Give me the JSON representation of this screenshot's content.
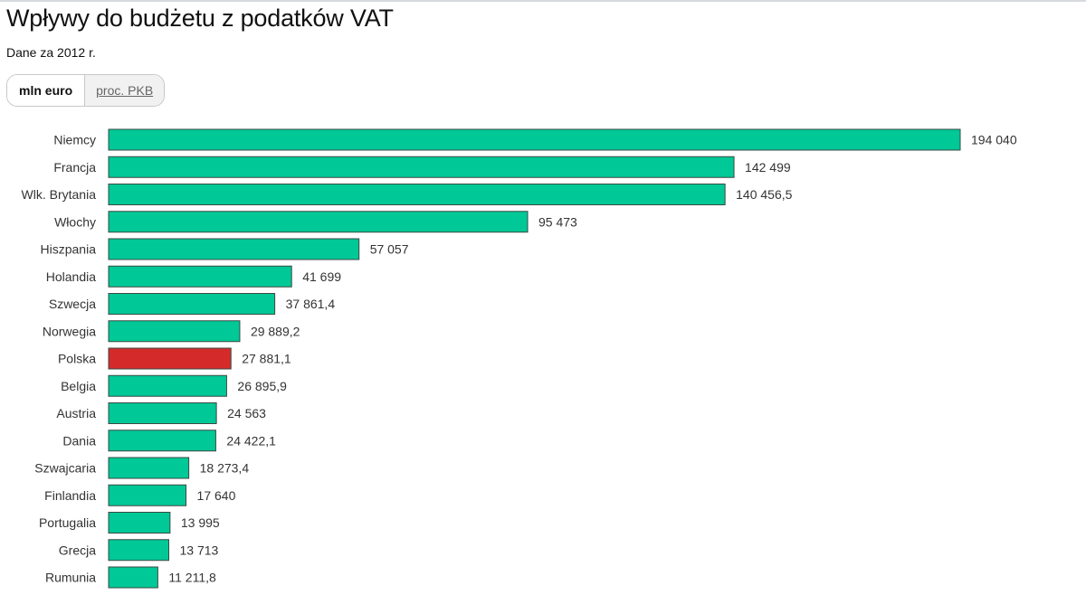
{
  "header": {
    "title": "Wpływy do budżetu z podatków VAT",
    "subtitle": "Dane za 2012 r."
  },
  "toggle": {
    "active_label": "mln euro",
    "inactive_label": "proc. PKB"
  },
  "colors": {
    "bar": "#00c896",
    "highlight": "#d42a2a"
  },
  "chart_data": {
    "type": "bar",
    "orientation": "horizontal",
    "title": "Wpływy do budżetu z podatków VAT",
    "subtitle": "Dane za 2012 r.",
    "unit": "mln euro",
    "xlim": [
      0,
      194040
    ],
    "grid": false,
    "highlight": "Polska",
    "categories": [
      "Niemcy",
      "Francja",
      "Wlk. Brytania",
      "Włochy",
      "Hiszpania",
      "Holandia",
      "Szwecja",
      "Norwegia",
      "Polska",
      "Belgia",
      "Austria",
      "Dania",
      "Szwajcaria",
      "Finlandia",
      "Portugalia",
      "Grecja",
      "Rumunia"
    ],
    "values": [
      194040,
      142499,
      140456.5,
      95473,
      57057,
      41699,
      37861.4,
      29889.2,
      27881.1,
      26895.9,
      24563,
      24422.1,
      18273.4,
      17640,
      13995,
      13713,
      11211.8
    ],
    "labels": [
      "194 040",
      "142 499",
      "140 456,5",
      "95 473",
      "57 057",
      "41 699",
      "37 861,4",
      "29 889,2",
      "27 881,1",
      "26 895,9",
      "24 563",
      "24 422,1",
      "18 273,4",
      "17 640",
      "13 995",
      "13 713",
      "11 211,8"
    ]
  }
}
